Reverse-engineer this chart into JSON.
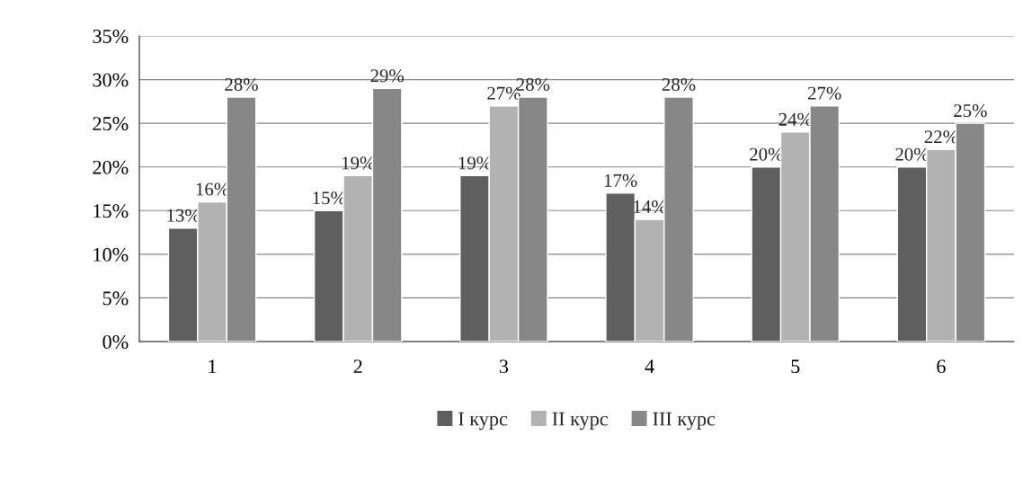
{
  "chart_data": {
    "type": "bar",
    "categories": [
      "1",
      "2",
      "3",
      "4",
      "5",
      "6"
    ],
    "series": [
      {
        "name": "I курс",
        "color": "#5f5f5f",
        "values": [
          13,
          15,
          19,
          17,
          20,
          20
        ],
        "value_labels": [
          "13%",
          "15%",
          "19%",
          "17%",
          "20%",
          "20%"
        ]
      },
      {
        "name": "II курс",
        "color": "#b2b2b2",
        "values": [
          16,
          19,
          27,
          14,
          24,
          22
        ],
        "value_labels": [
          "16%",
          "19%",
          "27%",
          "14%",
          "24%",
          "22%"
        ]
      },
      {
        "name": "III курс",
        "color": "#878787",
        "values": [
          28,
          29,
          28,
          28,
          27,
          25
        ],
        "value_labels": [
          "28%",
          "29%",
          "28%",
          "28%",
          "27%",
          "25%"
        ]
      }
    ],
    "ylim": [
      0,
      35
    ],
    "yticks": [
      {
        "value": 0,
        "label": "0%"
      },
      {
        "value": 5,
        "label": "5%"
      },
      {
        "value": 10,
        "label": "10%"
      },
      {
        "value": 15,
        "label": "15%"
      },
      {
        "value": 20,
        "label": "20%"
      },
      {
        "value": 25,
        "label": "25%"
      },
      {
        "value": 30,
        "label": "30%"
      },
      {
        "value": 35,
        "label": "35%"
      }
    ],
    "grid": "y",
    "legend": "bottom"
  }
}
